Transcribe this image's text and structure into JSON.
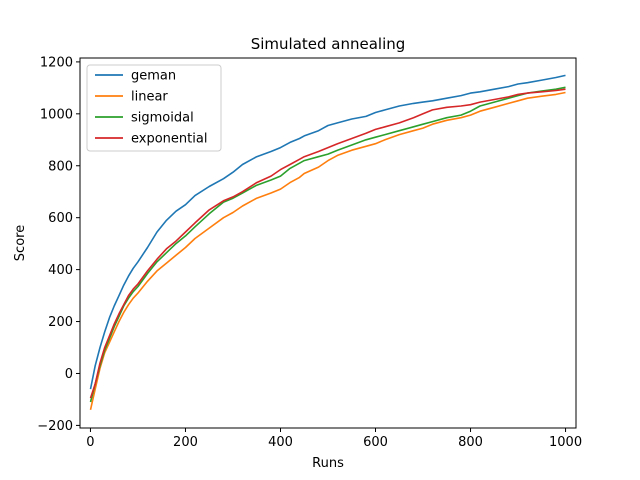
{
  "chart_data": {
    "type": "line",
    "title": "Simulated annealing",
    "xlabel": "Runs",
    "ylabel": "Score",
    "xlim": [
      -22,
      1022
    ],
    "ylim": [
      -210,
      1215
    ],
    "xticks": [
      0,
      200,
      400,
      600,
      800,
      1000
    ],
    "yticks": [
      -200,
      0,
      200,
      400,
      600,
      800,
      1000,
      1200
    ],
    "legend_position": "top-left",
    "grid": false,
    "series": [
      {
        "name": "geman",
        "color": "#1f77b4",
        "x": [
          0,
          10,
          20,
          30,
          40,
          50,
          60,
          70,
          80,
          90,
          100,
          120,
          140,
          160,
          180,
          200,
          220,
          250,
          280,
          300,
          320,
          350,
          380,
          400,
          420,
          440,
          450,
          480,
          500,
          520,
          550,
          580,
          600,
          620,
          650,
          680,
          700,
          720,
          750,
          780,
          800,
          820,
          850,
          880,
          900,
          920,
          950,
          980,
          1000
        ],
        "y": [
          -60,
          30,
          100,
          160,
          215,
          260,
          300,
          340,
          375,
          405,
          430,
          485,
          545,
          590,
          625,
          650,
          685,
          720,
          750,
          775,
          805,
          835,
          855,
          870,
          890,
          905,
          915,
          935,
          955,
          965,
          980,
          990,
          1005,
          1015,
          1030,
          1040,
          1045,
          1050,
          1060,
          1070,
          1080,
          1085,
          1095,
          1105,
          1115,
          1120,
          1130,
          1140,
          1148
        ]
      },
      {
        "name": "linear",
        "color": "#ff7f0e",
        "x": [
          0,
          10,
          20,
          30,
          40,
          50,
          60,
          70,
          80,
          90,
          100,
          120,
          140,
          160,
          180,
          200,
          220,
          250,
          280,
          300,
          320,
          350,
          380,
          400,
          420,
          440,
          450,
          480,
          500,
          520,
          550,
          580,
          600,
          620,
          650,
          680,
          700,
          720,
          750,
          780,
          800,
          820,
          850,
          880,
          900,
          920,
          950,
          980,
          1000
        ],
        "y": [
          -140,
          -60,
          20,
          80,
          120,
          160,
          200,
          235,
          265,
          290,
          310,
          355,
          395,
          425,
          455,
          485,
          520,
          560,
          600,
          620,
          645,
          675,
          695,
          710,
          735,
          755,
          770,
          795,
          820,
          840,
          860,
          875,
          885,
          900,
          920,
          935,
          945,
          960,
          975,
          985,
          995,
          1010,
          1025,
          1040,
          1050,
          1060,
          1068,
          1075,
          1082
        ]
      },
      {
        "name": "sigmoidal",
        "color": "#2ca02c",
        "x": [
          0,
          10,
          20,
          30,
          40,
          50,
          60,
          70,
          80,
          90,
          100,
          120,
          140,
          160,
          180,
          200,
          220,
          250,
          280,
          300,
          320,
          350,
          380,
          400,
          420,
          440,
          450,
          480,
          500,
          520,
          550,
          580,
          600,
          620,
          650,
          680,
          700,
          720,
          750,
          780,
          800,
          820,
          850,
          880,
          900,
          920,
          950,
          980,
          1000
        ],
        "y": [
          -110,
          -40,
          30,
          90,
          135,
          180,
          220,
          260,
          290,
          315,
          335,
          385,
          430,
          465,
          500,
          530,
          565,
          615,
          660,
          675,
          695,
          725,
          745,
          760,
          790,
          810,
          820,
          835,
          845,
          860,
          880,
          900,
          910,
          920,
          935,
          950,
          960,
          970,
          985,
          995,
          1010,
          1030,
          1045,
          1060,
          1070,
          1080,
          1088,
          1095,
          1102
        ]
      },
      {
        "name": "exponential",
        "color": "#d62728",
        "x": [
          0,
          10,
          20,
          30,
          40,
          50,
          60,
          70,
          80,
          90,
          100,
          120,
          140,
          160,
          180,
          200,
          220,
          250,
          280,
          300,
          320,
          350,
          380,
          400,
          420,
          440,
          450,
          480,
          500,
          520,
          550,
          580,
          600,
          620,
          650,
          680,
          700,
          720,
          750,
          780,
          800,
          820,
          850,
          880,
          900,
          920,
          950,
          980,
          1000
        ],
        "y": [
          -95,
          -40,
          40,
          100,
          145,
          190,
          230,
          265,
          300,
          325,
          345,
          395,
          440,
          480,
          510,
          545,
          580,
          630,
          665,
          680,
          700,
          735,
          760,
          785,
          805,
          825,
          835,
          855,
          870,
          885,
          905,
          925,
          940,
          950,
          965,
          985,
          1000,
          1015,
          1025,
          1030,
          1035,
          1045,
          1055,
          1065,
          1075,
          1080,
          1085,
          1090,
          1095
        ]
      }
    ]
  }
}
